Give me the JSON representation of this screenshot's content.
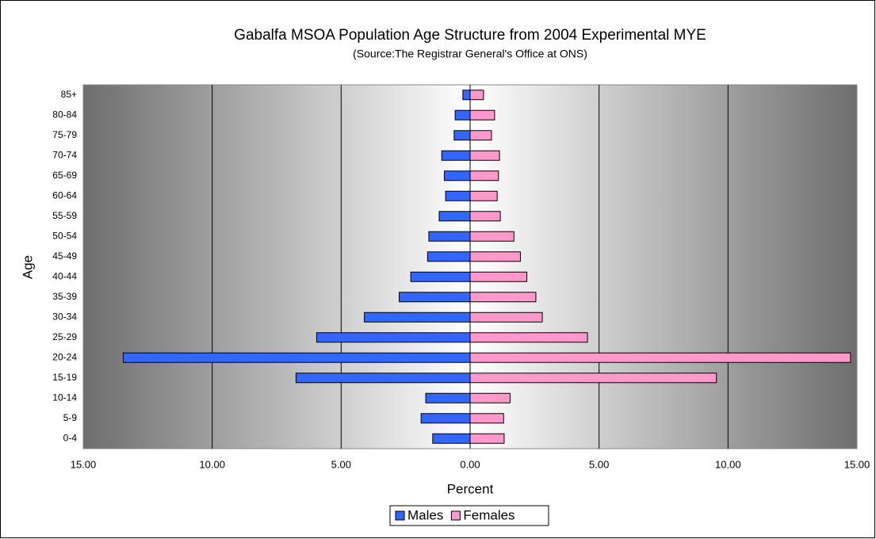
{
  "chart_data": {
    "type": "pyramid",
    "title": "Gabalfa MSOA Population Age Structure from 2004 Experimental MYE",
    "subtitle": "(Source:The Registrar General's Office at ONS)",
    "x_label": "Percent",
    "y_label": "Age",
    "categories": [
      "0-4",
      "5-9",
      "10-14",
      "15-19",
      "20-24",
      "25-29",
      "30-34",
      "35-39",
      "40-44",
      "45-49",
      "50-54",
      "55-59",
      "60-64",
      "65-69",
      "70-74",
      "75-79",
      "80-84",
      "85+"
    ],
    "series": [
      {
        "name": "Males",
        "color": "#3366ff",
        "values": [
          -1.45,
          -1.9,
          -1.72,
          -6.75,
          -13.45,
          -5.95,
          -4.1,
          -2.75,
          -2.3,
          -1.65,
          -1.6,
          -1.2,
          -0.95,
          -1.0,
          -1.1,
          -0.62,
          -0.58,
          -0.28
        ]
      },
      {
        "name": "Females",
        "color": "#ff99cc",
        "values": [
          1.32,
          1.3,
          1.55,
          9.55,
          14.75,
          4.55,
          2.8,
          2.55,
          2.2,
          1.95,
          1.7,
          1.17,
          1.05,
          1.1,
          1.14,
          0.83,
          0.95,
          0.52
        ]
      }
    ],
    "xlim": [
      -15,
      15
    ],
    "xticks": [
      {
        "value": -15,
        "label": "15.00"
      },
      {
        "value": -10,
        "label": "10.00"
      },
      {
        "value": -5,
        "label": "5.00"
      },
      {
        "value": 0,
        "label": "0.00"
      },
      {
        "value": 5,
        "label": "5.00"
      },
      {
        "value": 10,
        "label": "10.00"
      },
      {
        "value": 15,
        "label": "15.00"
      }
    ],
    "negative_tick_color": "#ff0000",
    "grid": true,
    "legend": "bottom"
  }
}
